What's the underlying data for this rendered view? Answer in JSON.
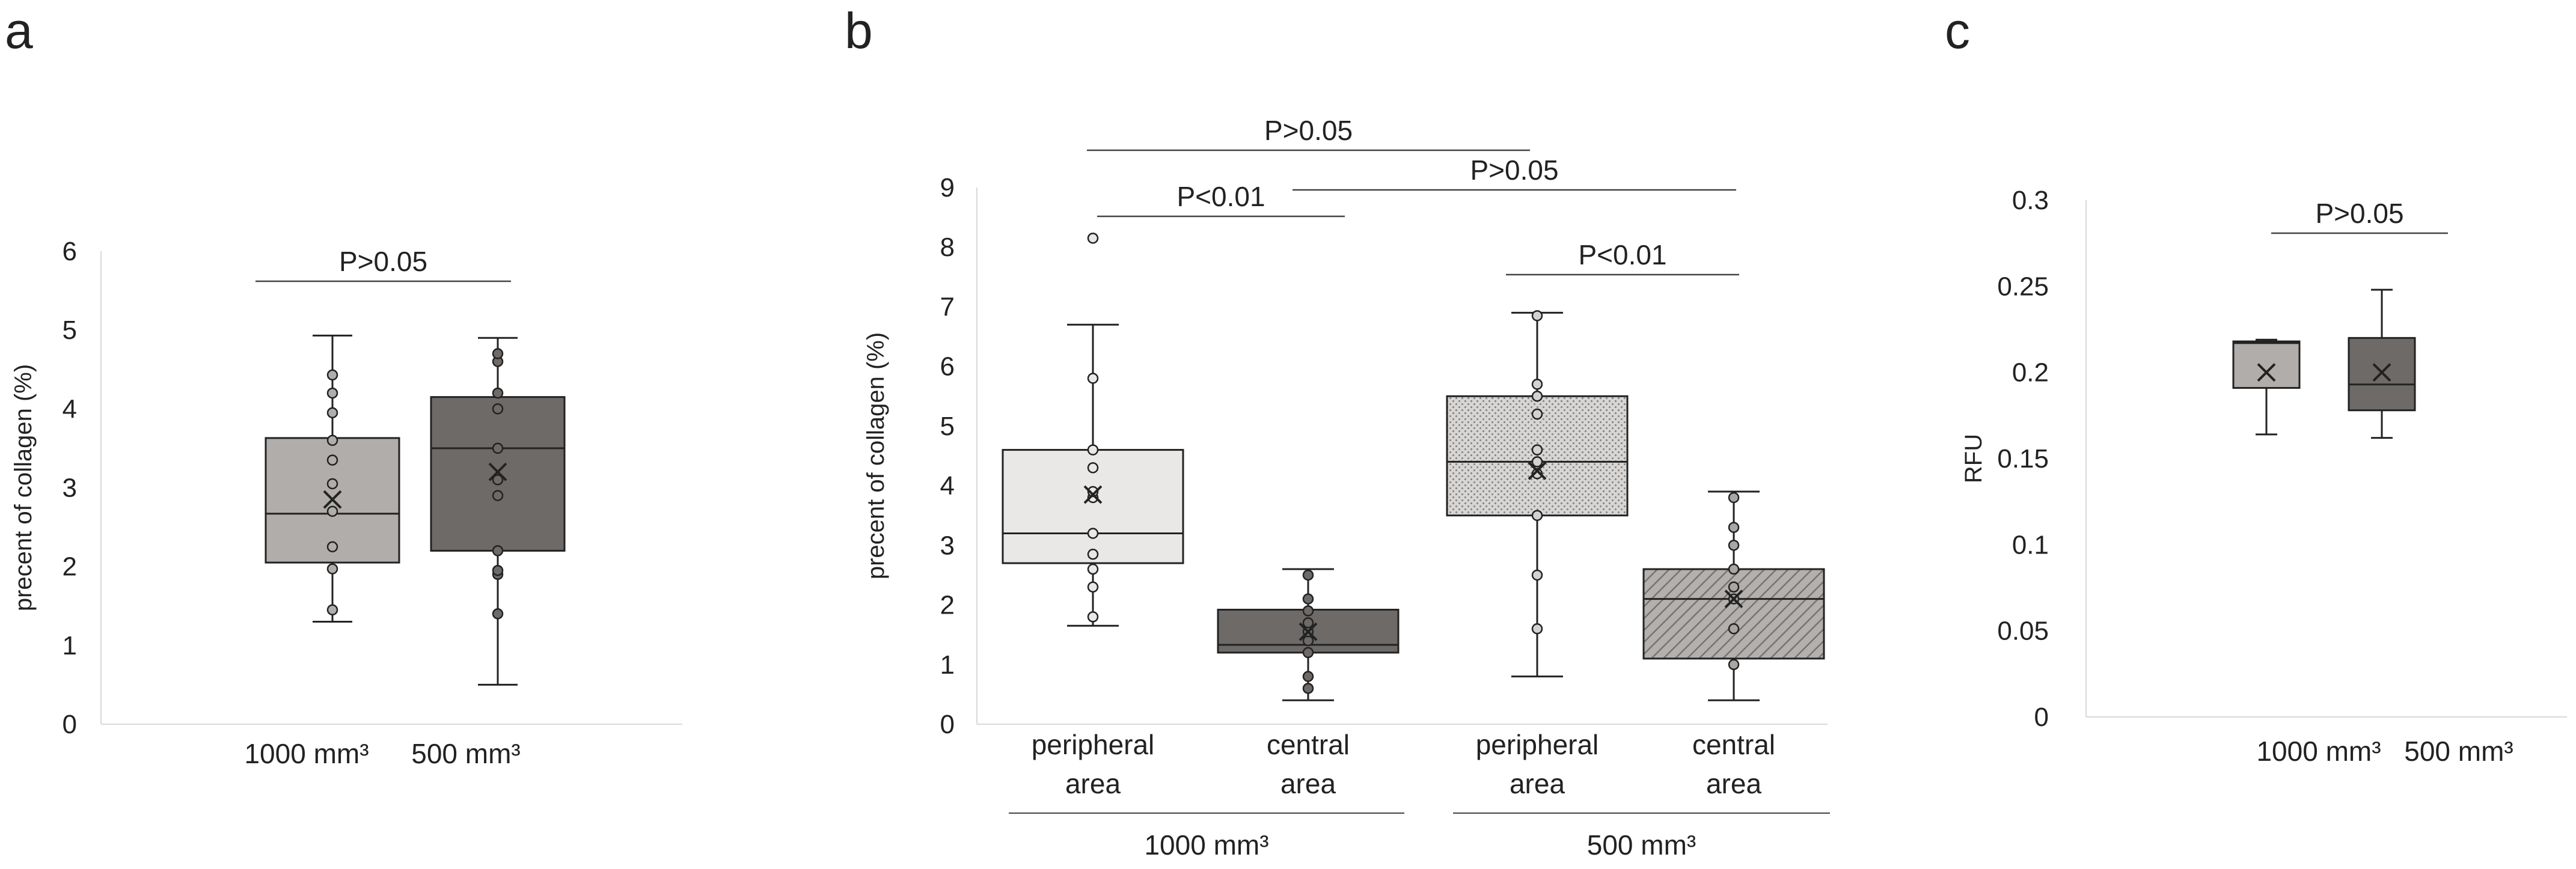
{
  "chart_data": [
    {
      "type": "boxplot",
      "panel_label": "a",
      "ylabel": "precent of collagen (%)",
      "ylim": [
        0,
        6
      ],
      "yticks": [
        "0",
        "1",
        "2",
        "3",
        "4",
        "5",
        "6"
      ],
      "groups": [
        {
          "label": "1000 mm³",
          "fill": "#b0adab",
          "pattern": "none",
          "min": 1.3,
          "q1": 2.05,
          "median": 2.67,
          "q3": 3.63,
          "max": 4.93,
          "mean": 2.85,
          "points": [
            1.45,
            1.97,
            2.25,
            2.7,
            3.05,
            3.35,
            3.6,
            3.95,
            4.2,
            4.43
          ]
        },
        {
          "label": "500 mm³",
          "fill": "#6e6a68",
          "pattern": "none",
          "min": 0.5,
          "q1": 2.2,
          "median": 3.5,
          "q3": 4.15,
          "max": 4.9,
          "mean": 3.2,
          "points": [
            1.4,
            1.9,
            1.95,
            2.2,
            2.9,
            3.1,
            3.5,
            4.0,
            4.2,
            4.6,
            4.7
          ]
        }
      ],
      "comparisons": [
        {
          "label": "P>0.05",
          "from": 0,
          "to": 1,
          "level": 0
        }
      ]
    },
    {
      "type": "boxplot",
      "panel_label": "b",
      "ylabel": "precent of collagen (%)",
      "ylim": [
        0,
        9
      ],
      "yticks": [
        "0",
        "1",
        "2",
        "3",
        "4",
        "5",
        "6",
        "7",
        "8",
        "9"
      ],
      "groups": [
        {
          "label_line1": "peripheral",
          "label_line2": "area",
          "fill": "#e9e8e7",
          "pattern": "none",
          "min": 1.65,
          "q1": 2.7,
          "median": 3.2,
          "q3": 4.6,
          "max": 6.7,
          "mean": 3.85,
          "points": [
            1.8,
            2.3,
            2.6,
            2.85,
            3.2,
            3.8,
            3.9,
            4.3,
            4.6,
            5.8,
            8.15
          ]
        },
        {
          "label_line1": "central",
          "label_line2": "area",
          "fill": "#6e6a68",
          "pattern": "none",
          "min": 0.4,
          "q1": 1.2,
          "median": 1.33,
          "q3": 1.92,
          "max": 2.6,
          "mean": 1.55,
          "points": [
            0.6,
            0.8,
            1.2,
            1.4,
            1.55,
            1.7,
            1.9,
            2.1,
            2.5
          ]
        },
        {
          "label_line1": "peripheral",
          "label_line2": "area",
          "fill": "#d4d2d0",
          "pattern": "dots",
          "min": 0.8,
          "q1": 3.5,
          "median": 4.4,
          "q3": 5.5,
          "max": 6.9,
          "mean": 4.25,
          "points": [
            1.6,
            2.5,
            3.5,
            4.2,
            4.4,
            4.6,
            5.2,
            5.5,
            5.7,
            6.85
          ]
        },
        {
          "label_line1": "central",
          "label_line2": "area",
          "fill": "#a9a6a4",
          "pattern": "hatch",
          "min": 0.4,
          "q1": 1.1,
          "median": 2.1,
          "q3": 2.6,
          "max": 3.9,
          "mean": 2.1,
          "points": [
            1.0,
            1.6,
            2.1,
            2.3,
            2.6,
            3.0,
            3.3,
            3.8
          ]
        }
      ],
      "group_headers": [
        {
          "label": "1000 mm³",
          "from": 0,
          "to": 1
        },
        {
          "label": "500 mm³",
          "from": 2,
          "to": 3
        }
      ],
      "comparisons": [
        {
          "label": "P>0.05",
          "from": 0,
          "to": 2,
          "level": 3
        },
        {
          "label": "P>0.05",
          "from": 1,
          "to": 3,
          "level": 2
        },
        {
          "label": "P<0.01",
          "from": 0,
          "to": 1,
          "level": 1
        },
        {
          "label": "P<0.01",
          "from": 2,
          "to": 3,
          "level": 0
        }
      ]
    },
    {
      "type": "boxplot",
      "panel_label": "c",
      "ylabel": "RFU",
      "ylim": [
        0,
        0.3
      ],
      "yticks": [
        "0",
        "0.05",
        "0.1",
        "0.15",
        "0.2",
        "0.25",
        "0.3"
      ],
      "groups": [
        {
          "label": "1000 mm³",
          "fill": "#b0adab",
          "pattern": "none",
          "min": 0.164,
          "q1": 0.191,
          "median": 0.217,
          "q3": 0.218,
          "max": 0.219,
          "mean": 0.2,
          "points": []
        },
        {
          "label": "500 mm³",
          "fill": "#6e6a68",
          "pattern": "none",
          "min": 0.162,
          "q1": 0.178,
          "median": 0.193,
          "q3": 0.22,
          "max": 0.248,
          "mean": 0.2,
          "points": []
        }
      ],
      "comparisons": [
        {
          "label": "P>0.05",
          "from": 0,
          "to": 1,
          "level": 0
        }
      ]
    }
  ]
}
